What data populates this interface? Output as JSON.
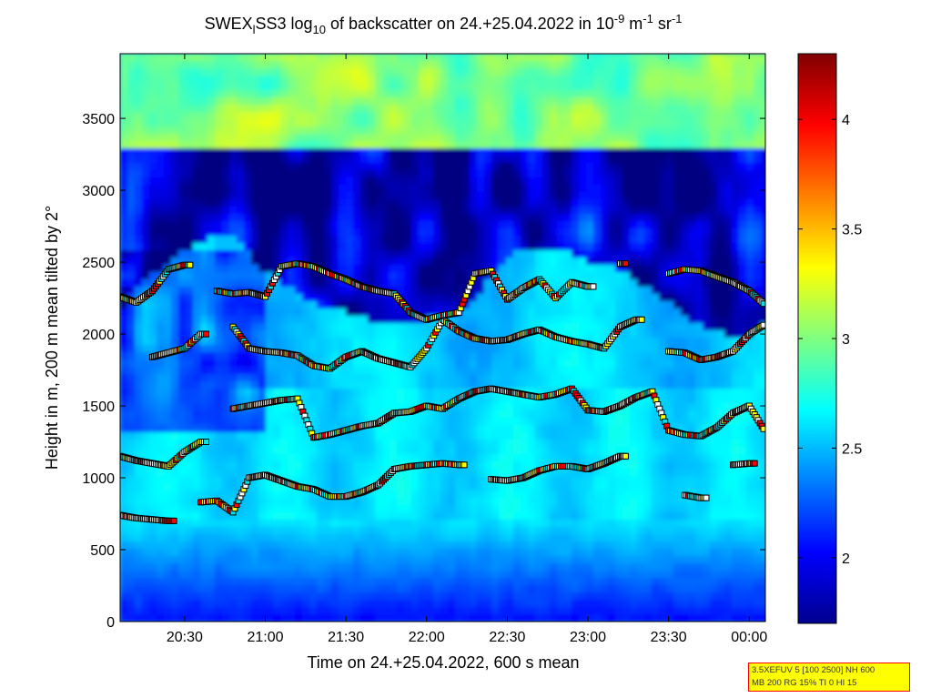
{
  "chart_data": {
    "type": "heatmap",
    "title": {
      "prefix": "SWEX",
      "prefix_sub": "l",
      "station": "SS3 log",
      "log_sub": "10",
      "middle": " of backscatter on 24.+25.04.2022 in 10",
      "unit_exp1": "-9",
      "unit_m": " m",
      "unit_exp2": "-1",
      "unit_sr": " sr",
      "unit_exp3": "-1"
    },
    "xlabel": "Time on 24.+25.04.2022, 600 s mean",
    "ylabel": "Height in m, 200 m mean tilted by 2°",
    "x_ticks": [
      "20:30",
      "21:00",
      "21:30",
      "22:00",
      "22:30",
      "23:00",
      "23:30",
      "00:00"
    ],
    "x_tick_hours": [
      20.5,
      21.0,
      21.5,
      22.0,
      22.5,
      23.0,
      23.5,
      24.0
    ],
    "x_range_hours": [
      20.1,
      24.1
    ],
    "y_ticks": [
      "0",
      "500",
      "1000",
      "1500",
      "2000",
      "2500",
      "3000",
      "3500"
    ],
    "y_tick_values": [
      0,
      500,
      1000,
      1500,
      2000,
      2500,
      3000,
      3500
    ],
    "y_range": [
      0,
      3950
    ],
    "colorbar": {
      "ticks": [
        "2",
        "2.5",
        "3",
        "3.5",
        "4"
      ],
      "tick_values": [
        2,
        2.5,
        3,
        3.5,
        4
      ],
      "range": [
        1.7,
        4.3
      ],
      "colormap": "jet"
    },
    "layer_series": [
      {
        "hours": [
          20.1,
          20.2,
          20.3,
          20.4,
          20.5,
          20.6,
          20.7,
          20.8,
          20.9,
          21.0,
          21.1,
          21.2,
          21.3,
          21.4,
          21.5,
          21.6,
          21.7,
          21.8,
          21.9,
          22.0,
          22.1,
          22.2,
          22.3,
          22.4,
          22.5,
          22.6,
          22.7,
          22.8,
          22.9,
          23.0,
          23.1,
          23.2,
          23.3,
          23.4,
          23.5,
          23.6,
          23.7,
          23.8,
          23.9,
          24.0,
          24.1
        ],
        "heights": [
          740,
          720,
          710,
          700,
          null,
          830,
          840,
          760,
          1000,
          1020,
          980,
          940,
          920,
          870,
          870,
          900,
          950,
          1060,
          1080,
          1090,
          1100,
          1090,
          null,
          990,
          980,
          1000,
          1050,
          1080,
          1080,
          1060,
          1100,
          1150,
          null,
          null,
          null,
          880,
          860,
          null,
          1090,
          1100,
          null
        ]
      },
      {
        "hours": [
          20.1,
          20.2,
          20.3,
          20.4,
          20.5,
          20.6,
          20.7,
          20.8,
          20.9,
          21.0,
          21.1,
          21.2,
          21.3,
          21.4,
          21.5,
          21.6,
          21.7,
          21.8,
          21.9,
          22.0,
          22.1,
          22.2,
          22.3,
          22.4,
          22.5,
          22.6,
          22.7,
          22.8,
          22.9,
          23.0,
          23.1,
          23.2,
          23.3,
          23.4,
          23.5,
          23.6,
          23.7,
          23.8,
          23.9,
          24.0,
          24.1
        ],
        "heights": [
          1150,
          1120,
          1100,
          1080,
          1180,
          1250,
          null,
          1480,
          1500,
          1520,
          1540,
          1550,
          1280,
          1300,
          1330,
          1360,
          1380,
          1450,
          1460,
          1500,
          1480,
          1550,
          1600,
          1620,
          1600,
          1580,
          1560,
          1580,
          1620,
          1470,
          1460,
          1500,
          1560,
          1600,
          1330,
          1300,
          1290,
          1350,
          1450,
          1500,
          1320
        ]
      },
      {
        "hours": [
          20.1,
          20.2,
          20.3,
          20.4,
          20.5,
          20.6,
          20.7,
          20.8,
          20.9,
          21.0,
          21.1,
          21.2,
          21.3,
          21.4,
          21.5,
          21.6,
          21.7,
          21.8,
          21.9,
          22.0,
          22.1,
          22.2,
          22.3,
          22.4,
          22.5,
          22.6,
          22.7,
          22.8,
          22.9,
          23.0,
          23.1,
          23.2,
          23.3,
          23.4,
          23.5,
          23.6,
          23.7,
          23.8,
          23.9,
          24.0,
          24.1
        ],
        "heights": [
          null,
          null,
          1840,
          1870,
          1900,
          2000,
          null,
          2050,
          1900,
          1880,
          1870,
          1850,
          1780,
          1760,
          1840,
          1880,
          1830,
          1800,
          1770,
          1900,
          2100,
          2020,
          1970,
          1950,
          1960,
          2000,
          2030,
          1980,
          1950,
          1930,
          1900,
          2050,
          2100,
          null,
          1880,
          1870,
          1820,
          1840,
          1880,
          2000,
          2070
        ]
      },
      {
        "hours": [
          20.1,
          20.2,
          20.3,
          20.4,
          20.5,
          20.6,
          20.7,
          20.8,
          20.9,
          21.0,
          21.1,
          21.2,
          21.3,
          21.4,
          21.5,
          21.6,
          21.7,
          21.8,
          21.9,
          22.0,
          22.1,
          22.2,
          22.3,
          22.4,
          22.5,
          22.6,
          22.7,
          22.8,
          22.9,
          23.0,
          23.1,
          23.2,
          23.3,
          23.4,
          23.5,
          23.6,
          23.7,
          23.8,
          23.9,
          24.0,
          24.1
        ],
        "heights": [
          2260,
          2220,
          2300,
          2450,
          2480,
          null,
          2300,
          2280,
          2290,
          2260,
          2470,
          2490,
          2470,
          2420,
          2380,
          2330,
          2300,
          2280,
          2150,
          2100,
          2130,
          2150,
          2420,
          2440,
          2240,
          2320,
          2380,
          2250,
          2360,
          2330,
          null,
          2490,
          null,
          null,
          2420,
          2450,
          2440,
          2400,
          2360,
          2300,
          2200
        ]
      }
    ]
  },
  "info_box": {
    "line1": "3.5XEFUV 5 [100 2500] NH 600",
    "line2": "MB 200 RG 15% TI 0 HI 15"
  }
}
